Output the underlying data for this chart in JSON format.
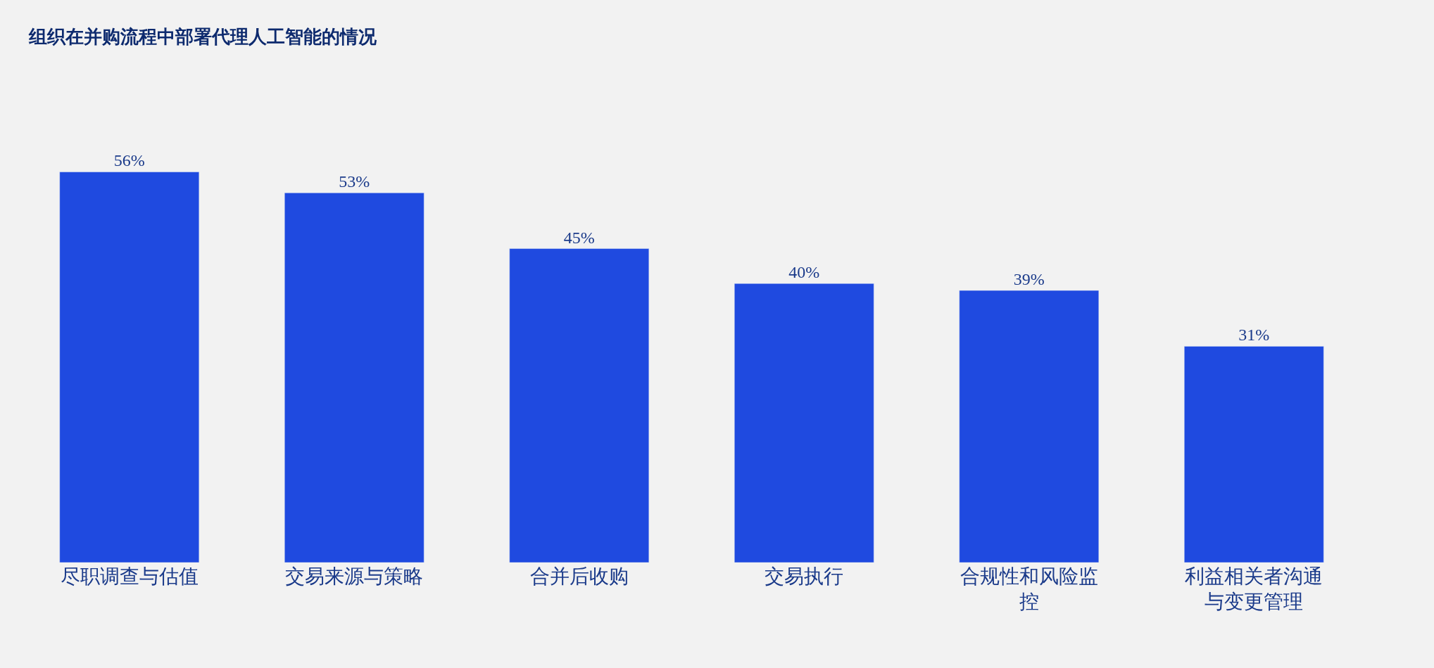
{
  "chart_data": {
    "type": "bar",
    "title": "组织在并购流程中部署代理人工智能的情况",
    "categories": [
      "尽职调查与估值",
      "交易来源与策略",
      "合并后收购",
      "交易执行",
      "合规性和风险监控",
      "利益相关者沟通与变更管理"
    ],
    "values": [
      56,
      53,
      45,
      40,
      39,
      31
    ],
    "value_labels": [
      "56%",
      "53%",
      "45%",
      "40%",
      "39%",
      "31%"
    ],
    "color": "#1f4ae0"
  }
}
